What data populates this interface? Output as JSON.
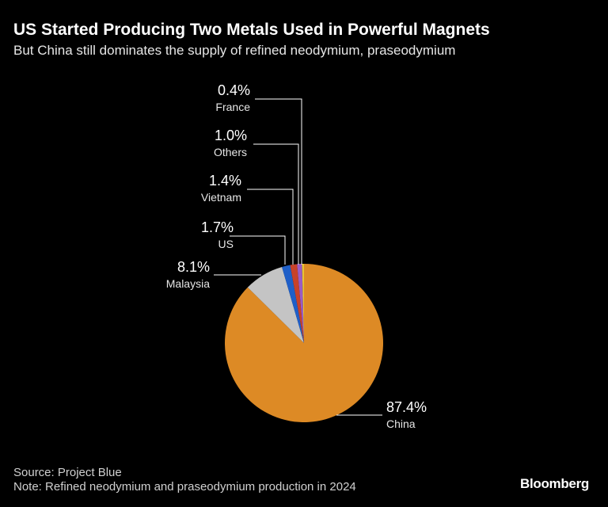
{
  "title": "US Started Producing Two Metals Used in Powerful Magnets",
  "subtitle": "But China still dominates the supply of refined neodymium, praseodymium",
  "source": "Source: Project Blue",
  "note": "Note: Refined neodymium and praseodymium production in 2024",
  "logo": "Bloomberg",
  "chart_data": {
    "type": "pie",
    "slices": [
      {
        "label": "China",
        "value": 87.4,
        "display": "87.4%",
        "color": "#dd8a25"
      },
      {
        "label": "Malaysia",
        "value": 8.1,
        "display": "8.1%",
        "color": "#c4c4c4"
      },
      {
        "label": "US",
        "value": 1.7,
        "display": "1.7%",
        "color": "#1f5fc8"
      },
      {
        "label": "Vietnam",
        "value": 1.4,
        "display": "1.4%",
        "color": "#c8422a"
      },
      {
        "label": "Others",
        "value": 1.0,
        "display": "1.0%",
        "color": "#9a5cc4"
      },
      {
        "label": "France",
        "value": 0.4,
        "display": "0.4%",
        "color": "#e8c430"
      }
    ]
  }
}
